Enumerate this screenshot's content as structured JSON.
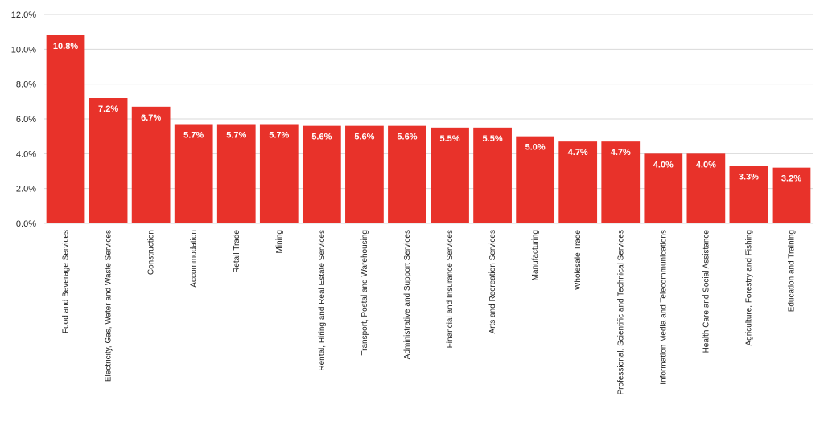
{
  "chart_data": {
    "type": "bar",
    "title": "",
    "xlabel": "",
    "ylabel": "",
    "ylim": [
      0,
      12
    ],
    "ytick_step": 2,
    "ytick_labels": [
      "0.0%",
      "2.0%",
      "4.0%",
      "6.0%",
      "8.0%",
      "10.0%",
      "12.0%"
    ],
    "grid": true,
    "legend": "none",
    "bar_color": "#E8322A",
    "categories": [
      "Food and Beverage Services",
      "Electricity, Gas, Water and Waste Services",
      "Construction",
      "Accommodation",
      "Retail Trade",
      "Mining",
      "Rental, Hiring and Real Estate Services",
      "Transport, Postal and Warehousing",
      "Administrative and Support Services",
      "Financial and Insurance Services",
      "Arts and Recreation Services",
      "Manufacturing",
      "Wholesale Trade",
      "Professional, Scientific and Technical Services",
      "Information Media and Telecommunications",
      "Health Care and Social Assistance",
      "Agriculture, Forestry and Fishing",
      "Education and Training"
    ],
    "values": [
      10.8,
      7.2,
      6.7,
      5.7,
      5.7,
      5.7,
      5.6,
      5.6,
      5.6,
      5.5,
      5.5,
      5.0,
      4.7,
      4.7,
      4.0,
      4.0,
      3.3,
      3.2
    ],
    "data_labels": [
      "10.8%",
      "7.2%",
      "6.7%",
      "5.7%",
      "5.7%",
      "5.7%",
      "5.6%",
      "5.6%",
      "5.6%",
      "5.5%",
      "5.5%",
      "5.0%",
      "4.7%",
      "4.7%",
      "4.0%",
      "4.0%",
      "3.3%",
      "3.2%"
    ]
  }
}
